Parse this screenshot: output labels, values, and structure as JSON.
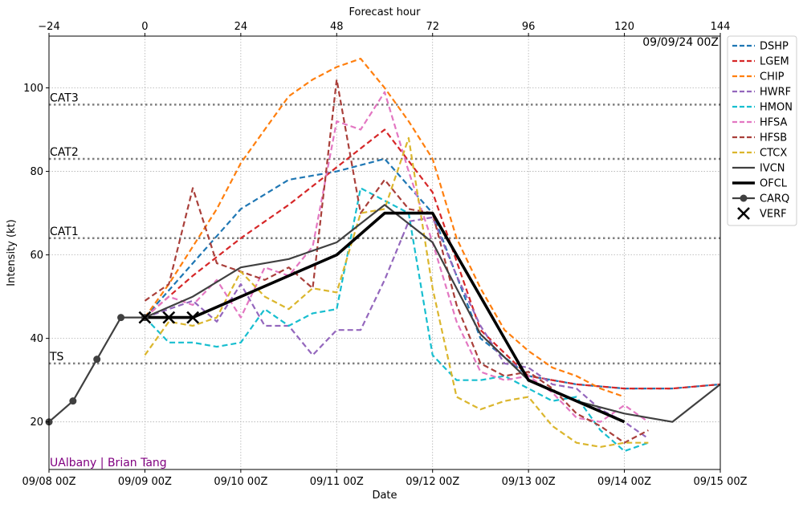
{
  "chart_data": {
    "type": "line",
    "top_axis_title": "Forecast hour",
    "xlabel": "Date",
    "ylabel": "Intensity (kt)",
    "init_label": "09/09/24 00Z",
    "watermark": "UAlbany | Brian Tang",
    "watermark_color": "#800080",
    "xlim": [
      -24,
      144
    ],
    "ylim": [
      8.6,
      112.4
    ],
    "x_ticks_bottom": [
      {
        "x": -24,
        "label": "09/08 00Z"
      },
      {
        "x": 0,
        "label": "09/09 00Z"
      },
      {
        "x": 24,
        "label": "09/10 00Z"
      },
      {
        "x": 48,
        "label": "09/11 00Z"
      },
      {
        "x": 72,
        "label": "09/12 00Z"
      },
      {
        "x": 96,
        "label": "09/13 00Z"
      },
      {
        "x": 120,
        "label": "09/14 00Z"
      },
      {
        "x": 144,
        "label": "09/15 00Z"
      }
    ],
    "x_ticks_top": [
      {
        "x": -24,
        "label": "−24"
      },
      {
        "x": 0,
        "label": "0"
      },
      {
        "x": 24,
        "label": "24"
      },
      {
        "x": 48,
        "label": "48"
      },
      {
        "x": 72,
        "label": "72"
      },
      {
        "x": 96,
        "label": "96"
      },
      {
        "x": 120,
        "label": "120"
      },
      {
        "x": 144,
        "label": "144"
      }
    ],
    "y_ticks": [
      {
        "y": 20,
        "label": "20"
      },
      {
        "y": 40,
        "label": "40"
      },
      {
        "y": 60,
        "label": "60"
      },
      {
        "y": 80,
        "label": "80"
      },
      {
        "y": 100,
        "label": "100"
      }
    ],
    "grid": true,
    "category_lines": [
      {
        "label": "TS",
        "y": 34
      },
      {
        "label": "CAT1",
        "y": 64
      },
      {
        "label": "CAT2",
        "y": 83
      },
      {
        "label": "CAT3",
        "y": 96
      }
    ],
    "legend_position": "right",
    "series": [
      {
        "name": "DSHP",
        "color": "#1f77b4",
        "style": "dashed",
        "x": [
          0,
          12,
          24,
          36,
          48,
          60,
          72,
          84,
          96,
          108,
          120,
          132,
          144
        ],
        "y": [
          45,
          58,
          71,
          78,
          80,
          83,
          70,
          40,
          31,
          29,
          28,
          28,
          29
        ]
      },
      {
        "name": "LGEM",
        "color": "#d62728",
        "style": "dashed",
        "x": [
          0,
          12,
          24,
          36,
          48,
          60,
          72,
          84,
          96,
          108,
          120,
          132,
          144
        ],
        "y": [
          45,
          55,
          64,
          72,
          81,
          90,
          75,
          42,
          31,
          29,
          28,
          28,
          29
        ]
      },
      {
        "name": "CHIP",
        "color": "#ff7f0e",
        "style": "dashed",
        "x": [
          0,
          6,
          12,
          18,
          24,
          30,
          36,
          42,
          48,
          54,
          60,
          66,
          72,
          78,
          84,
          90,
          96,
          102,
          108,
          114,
          120
        ],
        "y": [
          45,
          53,
          62,
          71,
          82,
          90,
          98,
          102,
          105,
          107,
          100,
          92,
          83,
          64,
          52,
          42,
          37,
          33,
          31,
          28,
          26
        ]
      },
      {
        "name": "HWRF",
        "color": "#9467bd",
        "style": "dashed",
        "x": [
          0,
          6,
          12,
          18,
          24,
          30,
          36,
          42,
          48,
          54,
          60,
          66,
          72,
          78,
          84,
          90,
          96,
          102,
          108,
          114,
          120,
          126
        ],
        "y": [
          45,
          47,
          49,
          44,
          53,
          43,
          43,
          36,
          42,
          42,
          54,
          68,
          69,
          55,
          43,
          34,
          33,
          29,
          28,
          23,
          20,
          16
        ]
      },
      {
        "name": "HMON",
        "color": "#17becf",
        "style": "dashed",
        "x": [
          0,
          6,
          12,
          18,
          24,
          30,
          36,
          42,
          48,
          54,
          60,
          66,
          72,
          78,
          84,
          90,
          96,
          102,
          108,
          114,
          120,
          126
        ],
        "y": [
          45,
          39,
          39,
          38,
          39,
          47,
          43,
          46,
          47,
          76,
          73,
          70,
          36,
          30,
          30,
          31,
          28,
          25,
          26,
          18,
          13,
          15
        ]
      },
      {
        "name": "HFSA",
        "color": "#e377c2",
        "style": "dashed",
        "x": [
          0,
          6,
          12,
          18,
          24,
          30,
          36,
          42,
          48,
          54,
          60,
          66,
          72,
          78,
          84,
          90,
          96,
          102,
          108,
          114,
          120,
          126
        ],
        "y": [
          45,
          50,
          48,
          54,
          45,
          57,
          55,
          62,
          92,
          90,
          99,
          80,
          63,
          44,
          32,
          30,
          31,
          27,
          21,
          20,
          24,
          20
        ]
      },
      {
        "name": "HFSB",
        "color": "#a93f3a",
        "style": "dashed",
        "x": [
          0,
          6,
          12,
          18,
          24,
          30,
          36,
          42,
          48,
          54,
          60,
          66,
          72,
          78,
          84,
          90,
          96,
          102,
          108,
          114,
          120,
          126
        ],
        "y": [
          49,
          53,
          76,
          58,
          56,
          54,
          57,
          52,
          102,
          70,
          78,
          71,
          70,
          48,
          34,
          31,
          32,
          28,
          22,
          19,
          15,
          18
        ]
      },
      {
        "name": "CTCX",
        "color": "#dbb62d",
        "style": "dashed",
        "x": [
          0,
          6,
          12,
          18,
          24,
          30,
          36,
          42,
          48,
          54,
          60,
          66,
          72,
          78,
          84,
          90,
          96,
          102,
          108,
          114,
          120,
          126
        ],
        "y": [
          36,
          44,
          43,
          45,
          56,
          50,
          47,
          52,
          51,
          70,
          71,
          88,
          52,
          26,
          23,
          25,
          26,
          19,
          15,
          14,
          15,
          15
        ]
      },
      {
        "name": "IVCN",
        "color": "#404040",
        "style": "solid",
        "x": [
          0,
          12,
          24,
          36,
          48,
          60,
          72,
          84,
          96,
          108,
          120,
          132,
          144
        ],
        "y": [
          45,
          50,
          57,
          59,
          63,
          72,
          63,
          41,
          30,
          25,
          22,
          20,
          29
        ]
      },
      {
        "name": "OFCL",
        "color": "#000000",
        "style": "thick",
        "x": [
          0,
          12,
          24,
          36,
          48,
          60,
          72,
          96,
          120
        ],
        "y": [
          45,
          45,
          50,
          55,
          60,
          70,
          70,
          30,
          20
        ]
      },
      {
        "name": "CARQ",
        "color": "#404040",
        "style": "marker-line",
        "x": [
          -24,
          -18,
          -12,
          -6,
          0
        ],
        "y": [
          20,
          25,
          35,
          45,
          45
        ]
      },
      {
        "name": "VERF",
        "color": "#000000",
        "style": "x-markers",
        "x": [
          0,
          6,
          12
        ],
        "y": [
          45,
          45,
          45
        ]
      }
    ]
  }
}
